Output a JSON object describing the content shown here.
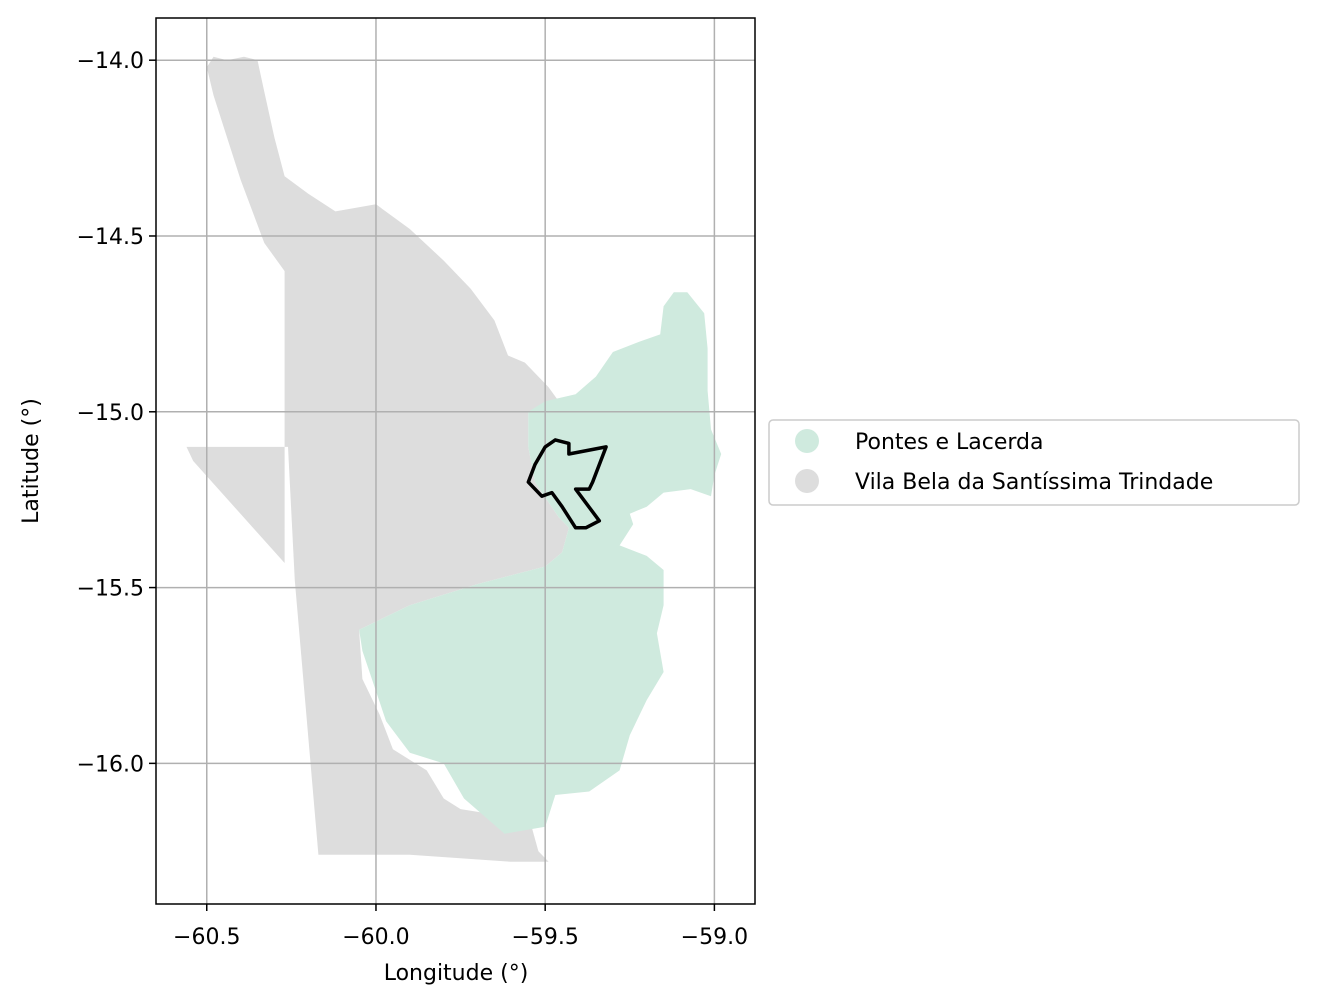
{
  "chart_data": {
    "type": "map",
    "xlabel": "Longitude (°)",
    "ylabel": "Latitude (°)",
    "xlim": [
      -60.65,
      -58.88
    ],
    "ylim": [
      -16.4,
      -13.88
    ],
    "x_ticks": [
      {
        "value": -60.5,
        "label": "−60.5"
      },
      {
        "value": -60.0,
        "label": "−60.0"
      },
      {
        "value": -59.5,
        "label": "−59.5"
      },
      {
        "value": -59.0,
        "label": "−59.0"
      }
    ],
    "y_ticks": [
      {
        "value": -14.0,
        "label": "−14.0"
      },
      {
        "value": -14.5,
        "label": "−14.5"
      },
      {
        "value": -15.0,
        "label": "−15.0"
      },
      {
        "value": -15.5,
        "label": "−15.5"
      },
      {
        "value": -16.0,
        "label": "−16.0"
      }
    ],
    "grid": true,
    "legend_position": "right",
    "regions": [
      {
        "name": "Vila Bela da Santíssima Trindade",
        "color": "#dddddd",
        "polygon": [
          [
            -60.48,
            -13.99
          ],
          [
            -60.44,
            -14.0
          ],
          [
            -60.39,
            -13.99
          ],
          [
            -60.35,
            -14.0
          ],
          [
            -60.33,
            -14.09
          ],
          [
            -60.3,
            -14.22
          ],
          [
            -60.27,
            -14.33
          ],
          [
            -60.2,
            -14.38
          ],
          [
            -60.12,
            -14.43
          ],
          [
            -60.0,
            -14.41
          ],
          [
            -59.9,
            -14.48
          ],
          [
            -59.8,
            -14.57
          ],
          [
            -59.72,
            -14.65
          ],
          [
            -59.65,
            -14.74
          ],
          [
            -59.61,
            -14.84
          ],
          [
            -59.56,
            -14.86
          ],
          [
            -59.49,
            -14.93
          ],
          [
            -59.46,
            -14.97
          ],
          [
            -59.55,
            -15.0
          ],
          [
            -59.55,
            -15.1
          ],
          [
            -59.53,
            -15.2
          ],
          [
            -59.46,
            -15.3
          ],
          [
            -59.43,
            -15.33
          ],
          [
            -59.45,
            -15.4
          ],
          [
            -59.5,
            -15.44
          ],
          [
            -59.7,
            -15.49
          ],
          [
            -59.9,
            -15.55
          ],
          [
            -60.05,
            -15.62
          ],
          [
            -60.04,
            -15.76
          ],
          [
            -59.99,
            -15.86
          ],
          [
            -59.95,
            -15.96
          ],
          [
            -59.85,
            -16.02
          ],
          [
            -59.8,
            -16.1
          ],
          [
            -59.75,
            -16.13
          ],
          [
            -59.62,
            -16.15
          ],
          [
            -59.54,
            -16.18
          ],
          [
            -59.52,
            -16.25
          ],
          [
            -59.49,
            -16.28
          ],
          [
            -59.6,
            -16.28
          ],
          [
            -59.9,
            -16.26
          ],
          [
            -60.17,
            -16.26
          ],
          [
            -60.24,
            -15.48
          ],
          [
            -60.26,
            -15.1
          ],
          [
            -60.56,
            -15.1
          ],
          [
            -60.54,
            -15.14
          ],
          [
            -60.27,
            -15.43
          ],
          [
            -60.27,
            -14.6
          ],
          [
            -60.33,
            -14.52
          ],
          [
            -60.4,
            -14.34
          ],
          [
            -60.48,
            -14.1
          ],
          [
            -60.5,
            -14.02
          ]
        ]
      },
      {
        "name": "Pontes e Lacerda",
        "color": "#cfeade",
        "polygon": [
          [
            -59.08,
            -14.66
          ],
          [
            -59.03,
            -14.72
          ],
          [
            -59.02,
            -14.82
          ],
          [
            -59.02,
            -14.94
          ],
          [
            -59.01,
            -15.05
          ],
          [
            -58.98,
            -15.12
          ],
          [
            -59.0,
            -15.18
          ],
          [
            -59.01,
            -15.24
          ],
          [
            -59.07,
            -15.22
          ],
          [
            -59.15,
            -15.23
          ],
          [
            -59.2,
            -15.27
          ],
          [
            -59.25,
            -15.29
          ],
          [
            -59.24,
            -15.32
          ],
          [
            -59.28,
            -15.38
          ],
          [
            -59.2,
            -15.41
          ],
          [
            -59.15,
            -15.45
          ],
          [
            -59.15,
            -15.55
          ],
          [
            -59.17,
            -15.63
          ],
          [
            -59.15,
            -15.74
          ],
          [
            -59.2,
            -15.82
          ],
          [
            -59.25,
            -15.92
          ],
          [
            -59.28,
            -16.02
          ],
          [
            -59.37,
            -16.08
          ],
          [
            -59.47,
            -16.09
          ],
          [
            -59.5,
            -16.18
          ],
          [
            -59.62,
            -16.2
          ],
          [
            -59.74,
            -16.1
          ],
          [
            -59.8,
            -16.0
          ],
          [
            -59.9,
            -15.97
          ],
          [
            -59.97,
            -15.88
          ],
          [
            -60.04,
            -15.68
          ],
          [
            -60.05,
            -15.62
          ],
          [
            -59.9,
            -15.55
          ],
          [
            -59.7,
            -15.49
          ],
          [
            -59.5,
            -15.44
          ],
          [
            -59.45,
            -15.4
          ],
          [
            -59.43,
            -15.33
          ],
          [
            -59.46,
            -15.3
          ],
          [
            -59.53,
            -15.2
          ],
          [
            -59.55,
            -15.1
          ],
          [
            -59.55,
            -15.0
          ],
          [
            -59.5,
            -14.97
          ],
          [
            -59.41,
            -14.95
          ],
          [
            -59.35,
            -14.9
          ],
          [
            -59.3,
            -14.83
          ],
          [
            -59.22,
            -14.8
          ],
          [
            -59.16,
            -14.78
          ],
          [
            -59.15,
            -14.7
          ],
          [
            -59.12,
            -14.66
          ]
        ]
      }
    ],
    "outline": [
      [
        -59.47,
        -15.08
      ],
      [
        -59.43,
        -15.09
      ],
      [
        -59.43,
        -15.12
      ],
      [
        -59.32,
        -15.1
      ],
      [
        -59.36,
        -15.2
      ],
      [
        -59.37,
        -15.22
      ],
      [
        -59.41,
        -15.22
      ],
      [
        -59.34,
        -15.31
      ],
      [
        -59.38,
        -15.33
      ],
      [
        -59.41,
        -15.33
      ],
      [
        -59.45,
        -15.27
      ],
      [
        -59.48,
        -15.23
      ],
      [
        -59.51,
        -15.24
      ],
      [
        -59.53,
        -15.22
      ],
      [
        -59.55,
        -15.2
      ],
      [
        -59.53,
        -15.15
      ],
      [
        -59.5,
        -15.1
      ]
    ],
    "outline_color": "#000000",
    "legend": [
      {
        "label": "Pontes e Lacerda",
        "color": "#cfeade"
      },
      {
        "label": "Vila Bela da Santíssima Trindade",
        "color": "#dddddd"
      }
    ]
  }
}
